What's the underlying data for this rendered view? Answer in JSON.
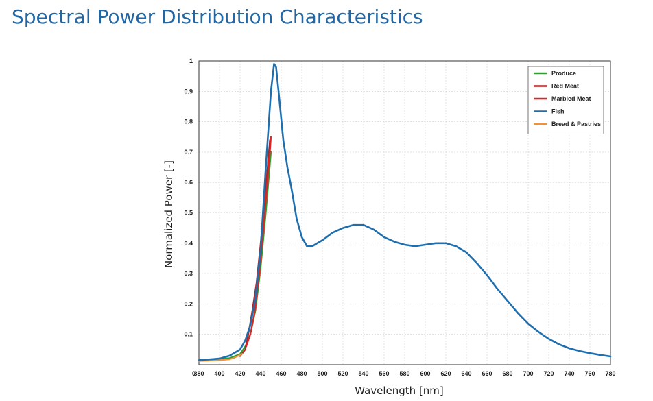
{
  "page": {
    "title": "Spectral Power Distribution Characteristics"
  },
  "chart_data": {
    "type": "line",
    "title": "",
    "xlabel": "Wavelength [nm]",
    "ylabel": "Normalized Power [-]",
    "xlim": [
      380,
      780
    ],
    "ylim": [
      0,
      1
    ],
    "x_ticks": [
      380,
      400,
      420,
      440,
      460,
      480,
      500,
      520,
      540,
      560,
      580,
      600,
      620,
      640,
      660,
      680,
      700,
      720,
      740,
      760,
      780
    ],
    "y_ticks": [
      0.1,
      0.2,
      0.3,
      0.4,
      0.5,
      0.6,
      0.7,
      0.8,
      0.9,
      1
    ],
    "origin_label": "0",
    "grid": true,
    "legend_position": "top-right",
    "series": [
      {
        "name": "Produce",
        "color": "#2ca02c",
        "x": [
          380,
          400,
          410,
          420,
          425,
          430,
          435,
          440,
          445,
          448,
          450
        ],
        "y": [
          0.015,
          0.018,
          0.022,
          0.035,
          0.06,
          0.1,
          0.18,
          0.32,
          0.5,
          0.62,
          0.7
        ]
      },
      {
        "name": "Red Meat",
        "color": "#b22222",
        "x": [
          420,
          425,
          428,
          432,
          436,
          440,
          444,
          447,
          449
        ],
        "y": [
          0.028,
          0.05,
          0.1,
          0.18,
          0.27,
          0.4,
          0.55,
          0.66,
          0.74
        ]
      },
      {
        "name": "Marbled Meat",
        "color": "#d62728",
        "x": [
          426,
          430,
          434,
          438,
          442,
          446,
          449,
          450
        ],
        "y": [
          0.06,
          0.1,
          0.17,
          0.28,
          0.42,
          0.58,
          0.7,
          0.75
        ]
      },
      {
        "name": "Fish",
        "color": "#1f6faf",
        "x": [
          380,
          400,
          410,
          420,
          425,
          430,
          435,
          440,
          445,
          450,
          453,
          455,
          458,
          462,
          466,
          470,
          475,
          480,
          485,
          490,
          500,
          510,
          520,
          530,
          540,
          550,
          560,
          570,
          580,
          590,
          600,
          610,
          620,
          630,
          640,
          650,
          660,
          670,
          680,
          690,
          700,
          710,
          720,
          730,
          740,
          750,
          760,
          770,
          780
        ],
        "y": [
          0.015,
          0.02,
          0.03,
          0.05,
          0.08,
          0.13,
          0.22,
          0.38,
          0.65,
          0.9,
          0.99,
          0.98,
          0.88,
          0.74,
          0.65,
          0.58,
          0.48,
          0.42,
          0.39,
          0.39,
          0.41,
          0.435,
          0.45,
          0.46,
          0.46,
          0.445,
          0.42,
          0.405,
          0.395,
          0.39,
          0.395,
          0.4,
          0.4,
          0.39,
          0.37,
          0.335,
          0.295,
          0.25,
          0.21,
          0.17,
          0.135,
          0.108,
          0.085,
          0.067,
          0.054,
          0.045,
          0.038,
          0.032,
          0.027
        ]
      },
      {
        "name": "Bread & Pastries",
        "color": "#f0913c",
        "x": [
          380,
          400,
          410,
          415,
          420,
          422
        ],
        "y": [
          0.012,
          0.015,
          0.018,
          0.024,
          0.032,
          0.036
        ]
      }
    ]
  }
}
